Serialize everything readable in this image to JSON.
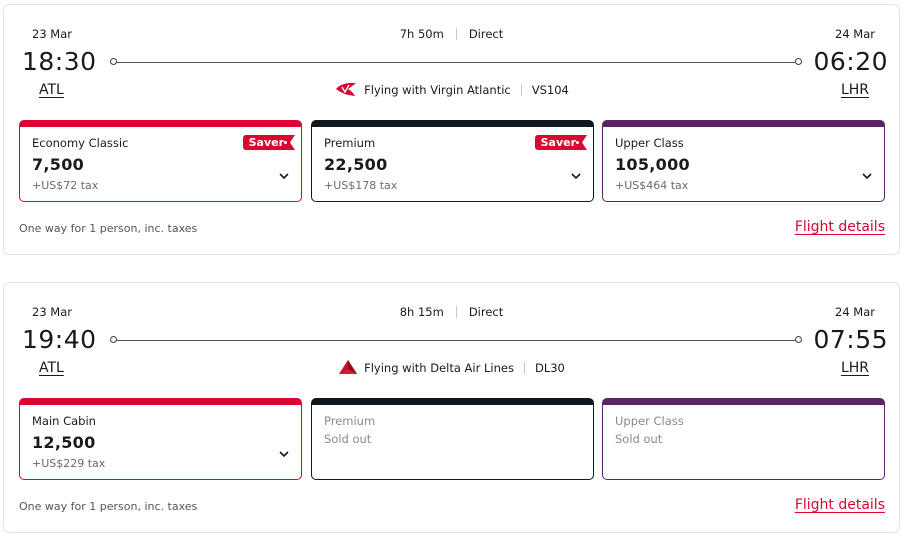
{
  "flights": [
    {
      "departure": {
        "date": "23 Mar",
        "time": "18:30",
        "airport": "ATL"
      },
      "arrival": {
        "date": "24 Mar",
        "time": "06:20",
        "airport": "LHR"
      },
      "duration": "7h 50m",
      "stops": "Direct",
      "operator": {
        "text": "Flying with Virgin Atlantic",
        "flight_number": "VS104",
        "logo": "virgin-atlantic-logo"
      },
      "fares": [
        {
          "class": "Economy Classic",
          "points": "7,500",
          "tax": "+US$72 tax",
          "badge": "Saver"
        },
        {
          "class": "Premium",
          "points": "22,500",
          "tax": "+US$178 tax",
          "badge": "Saver"
        },
        {
          "class": "Upper Class",
          "points": "105,000",
          "tax": "+US$464 tax"
        }
      ],
      "footnote": "One way for 1 person, inc. taxes",
      "details_link": "Flight details"
    },
    {
      "departure": {
        "date": "23 Mar",
        "time": "19:40",
        "airport": "ATL"
      },
      "arrival": {
        "date": "24 Mar",
        "time": "07:55",
        "airport": "LHR"
      },
      "duration": "8h 15m",
      "stops": "Direct",
      "operator": {
        "text": "Flying with Delta Air Lines",
        "flight_number": "DL30",
        "logo": "delta-logo"
      },
      "fares": [
        {
          "class": "Main Cabin",
          "points": "12,500",
          "tax": "+US$229 tax"
        },
        {
          "class": "Premium",
          "status": "Sold out"
        },
        {
          "class": "Upper Class",
          "status": "Sold out"
        }
      ],
      "footnote": "One way for 1 person, inc. taxes",
      "details_link": "Flight details"
    }
  ],
  "colors": {
    "economy": "#da0530",
    "premium": "#0f1a1e",
    "upper": "#5a2466",
    "link": "#da0530"
  }
}
